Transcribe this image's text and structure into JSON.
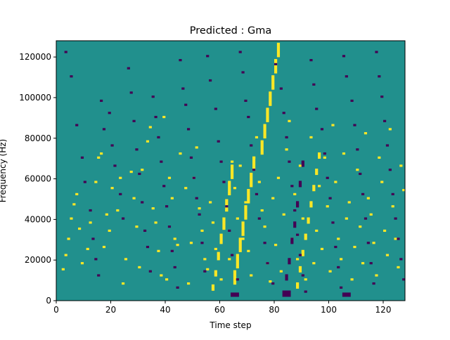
{
  "chart_data": {
    "type": "heatmap",
    "title": "Predicted : Gma",
    "xlabel": "Time step",
    "ylabel": "Frequency (Hz)",
    "xlim": [
      0,
      128
    ],
    "ylim": [
      0,
      128000
    ],
    "x_ticks": [
      0,
      20,
      40,
      60,
      80,
      100,
      120
    ],
    "y_ticks": [
      0,
      20000,
      40000,
      60000,
      80000,
      100000,
      120000
    ],
    "x_tick_labels": [
      "0",
      "20",
      "40",
      "60",
      "80",
      "100",
      "120"
    ],
    "y_tick_labels": [
      "0",
      "20000",
      "40000",
      "60000",
      "80000",
      "100000",
      "120000"
    ],
    "n_time_steps": 128,
    "n_freq_bins": 128,
    "freq_bin_hz": 1000,
    "colormap": {
      "background": "#21908d",
      "high": "#fde725",
      "low": "#440154"
    },
    "high_cells": [
      [
        2,
        15
      ],
      [
        3,
        22
      ],
      [
        4,
        30
      ],
      [
        5,
        40
      ],
      [
        6,
        47
      ],
      [
        7,
        52
      ],
      [
        8,
        35
      ],
      [
        9,
        18
      ],
      [
        11,
        25
      ],
      [
        12,
        38
      ],
      [
        14,
        58
      ],
      [
        15,
        70
      ],
      [
        16,
        72
      ],
      [
        17,
        26
      ],
      [
        18,
        42
      ],
      [
        19,
        34
      ],
      [
        20,
        55
      ],
      [
        22,
        44
      ],
      [
        23,
        60
      ],
      [
        24,
        8
      ],
      [
        25,
        20
      ],
      [
        27,
        63
      ],
      [
        28,
        50
      ],
      [
        29,
        36
      ],
      [
        30,
        16
      ],
      [
        31,
        64
      ],
      [
        33,
        78
      ],
      [
        34,
        85
      ],
      [
        35,
        45
      ],
      [
        36,
        38
      ],
      [
        37,
        24
      ],
      [
        38,
        12
      ],
      [
        39,
        90
      ],
      [
        40,
        10
      ],
      [
        41,
        60
      ],
      [
        42,
        50
      ],
      [
        43,
        30
      ],
      [
        44,
        27
      ],
      [
        45,
        72
      ],
      [
        47,
        55
      ],
      [
        48,
        8
      ],
      [
        49,
        28
      ],
      [
        50,
        60
      ],
      [
        51,
        75
      ],
      [
        52,
        45
      ],
      [
        53,
        34
      ],
      [
        54,
        20
      ],
      [
        55,
        15
      ],
      [
        56,
        48
      ],
      [
        57,
        38
      ],
      [
        58,
        25
      ],
      [
        60,
        10
      ],
      [
        61,
        35
      ],
      [
        62,
        44
      ],
      [
        63,
        20
      ],
      [
        64,
        68
      ],
      [
        65,
        55
      ],
      [
        66,
        40
      ],
      [
        67,
        66
      ],
      [
        68,
        30
      ],
      [
        69,
        48
      ],
      [
        70,
        24
      ],
      [
        71,
        12
      ],
      [
        72,
        70
      ],
      [
        73,
        80
      ],
      [
        74,
        58
      ],
      [
        75,
        44
      ],
      [
        76,
        36
      ],
      [
        77,
        18
      ],
      [
        78,
        9
      ],
      [
        79,
        50
      ],
      [
        80,
        27
      ],
      [
        81,
        60
      ],
      [
        82,
        14
      ],
      [
        83,
        42
      ],
      [
        84,
        74
      ],
      [
        85,
        88
      ],
      [
        86,
        30
      ],
      [
        87,
        52
      ],
      [
        88,
        20
      ],
      [
        89,
        66
      ],
      [
        90,
        40
      ],
      [
        91,
        10
      ],
      [
        93,
        80
      ],
      [
        94,
        18
      ],
      [
        95,
        34
      ],
      [
        96,
        56
      ],
      [
        97,
        25
      ],
      [
        98,
        70
      ],
      [
        99,
        46
      ],
      [
        100,
        14
      ],
      [
        101,
        86
      ],
      [
        102,
        58
      ],
      [
        103,
        30
      ],
      [
        104,
        20
      ],
      [
        105,
        72
      ],
      [
        106,
        40
      ],
      [
        107,
        48
      ],
      [
        108,
        10
      ],
      [
        109,
        26
      ],
      [
        110,
        64
      ],
      [
        111,
        36
      ],
      [
        112,
        18
      ],
      [
        113,
        82
      ],
      [
        114,
        50
      ],
      [
        115,
        42
      ],
      [
        116,
        28
      ],
      [
        117,
        12
      ],
      [
        118,
        70
      ],
      [
        119,
        58
      ],
      [
        120,
        34
      ],
      [
        121,
        22
      ],
      [
        122,
        84
      ],
      [
        123,
        46
      ],
      [
        124,
        30
      ],
      [
        125,
        16
      ],
      [
        126,
        66
      ],
      [
        127,
        54
      ],
      [
        57,
        5
      ],
      [
        57,
        6
      ],
      [
        57,
        7
      ],
      [
        58,
        12
      ],
      [
        58,
        13
      ],
      [
        58,
        14
      ],
      [
        59,
        20
      ],
      [
        59,
        21
      ],
      [
        59,
        22
      ],
      [
        59,
        23
      ],
      [
        60,
        28
      ],
      [
        60,
        29
      ],
      [
        60,
        30
      ],
      [
        60,
        31
      ],
      [
        60,
        32
      ],
      [
        61,
        36
      ],
      [
        61,
        37
      ],
      [
        61,
        38
      ],
      [
        61,
        39
      ],
      [
        61,
        40
      ],
      [
        62,
        44
      ],
      [
        62,
        45
      ],
      [
        62,
        46
      ],
      [
        62,
        47
      ],
      [
        62,
        48
      ],
      [
        62,
        49
      ],
      [
        63,
        52
      ],
      [
        63,
        53
      ],
      [
        63,
        54
      ],
      [
        63,
        55
      ],
      [
        63,
        56
      ],
      [
        63,
        57
      ],
      [
        63,
        58
      ],
      [
        64,
        60
      ],
      [
        64,
        61
      ],
      [
        64,
        62
      ],
      [
        64,
        63
      ],
      [
        64,
        64
      ],
      [
        64,
        65
      ],
      [
        64,
        66
      ],
      [
        65,
        8
      ],
      [
        65,
        9
      ],
      [
        65,
        10
      ],
      [
        65,
        11
      ],
      [
        65,
        12
      ],
      [
        65,
        13
      ],
      [
        65,
        14
      ],
      [
        66,
        16
      ],
      [
        66,
        17
      ],
      [
        66,
        18
      ],
      [
        66,
        19
      ],
      [
        66,
        20
      ],
      [
        66,
        21
      ],
      [
        66,
        22
      ],
      [
        67,
        24
      ],
      [
        67,
        25
      ],
      [
        67,
        26
      ],
      [
        67,
        27
      ],
      [
        67,
        28
      ],
      [
        67,
        29
      ],
      [
        67,
        30
      ],
      [
        68,
        32
      ],
      [
        68,
        33
      ],
      [
        68,
        34
      ],
      [
        68,
        35
      ],
      [
        68,
        36
      ],
      [
        68,
        37
      ],
      [
        68,
        38
      ],
      [
        69,
        40
      ],
      [
        69,
        41
      ],
      [
        69,
        42
      ],
      [
        69,
        43
      ],
      [
        69,
        44
      ],
      [
        69,
        45
      ],
      [
        69,
        46
      ],
      [
        70,
        48
      ],
      [
        70,
        49
      ],
      [
        70,
        50
      ],
      [
        70,
        51
      ],
      [
        70,
        52
      ],
      [
        70,
        53
      ],
      [
        70,
        54
      ],
      [
        71,
        56
      ],
      [
        71,
        57
      ],
      [
        71,
        58
      ],
      [
        71,
        59
      ],
      [
        71,
        60
      ],
      [
        71,
        61
      ],
      [
        71,
        62
      ],
      [
        72,
        64
      ],
      [
        72,
        65
      ],
      [
        72,
        66
      ],
      [
        72,
        67
      ],
      [
        72,
        68
      ],
      [
        72,
        69
      ],
      [
        72,
        70
      ],
      [
        75,
        72
      ],
      [
        75,
        73
      ],
      [
        75,
        74
      ],
      [
        75,
        75
      ],
      [
        75,
        76
      ],
      [
        75,
        77
      ],
      [
        75,
        78
      ],
      [
        76,
        80
      ],
      [
        76,
        81
      ],
      [
        76,
        82
      ],
      [
        76,
        83
      ],
      [
        76,
        84
      ],
      [
        76,
        85
      ],
      [
        76,
        86
      ],
      [
        77,
        88
      ],
      [
        77,
        89
      ],
      [
        77,
        90
      ],
      [
        77,
        91
      ],
      [
        77,
        92
      ],
      [
        77,
        93
      ],
      [
        77,
        94
      ],
      [
        78,
        96
      ],
      [
        78,
        97
      ],
      [
        78,
        98
      ],
      [
        78,
        99
      ],
      [
        78,
        100
      ],
      [
        78,
        101
      ],
      [
        78,
        102
      ],
      [
        79,
        104
      ],
      [
        79,
        105
      ],
      [
        79,
        106
      ],
      [
        79,
        107
      ],
      [
        79,
        108
      ],
      [
        79,
        109
      ],
      [
        79,
        110
      ],
      [
        80,
        112
      ],
      [
        80,
        113
      ],
      [
        80,
        114
      ],
      [
        80,
        115
      ],
      [
        80,
        116
      ],
      [
        80,
        117
      ],
      [
        80,
        118
      ],
      [
        81,
        120
      ],
      [
        81,
        121
      ],
      [
        81,
        122
      ],
      [
        81,
        123
      ],
      [
        81,
        124
      ],
      [
        81,
        125
      ],
      [
        81,
        126
      ],
      [
        88,
        6
      ],
      [
        88,
        7
      ],
      [
        88,
        8
      ],
      [
        89,
        14
      ],
      [
        89,
        15
      ],
      [
        89,
        16
      ],
      [
        90,
        22
      ],
      [
        90,
        23
      ],
      [
        90,
        24
      ],
      [
        91,
        30
      ],
      [
        91,
        31
      ],
      [
        91,
        32
      ],
      [
        92,
        38
      ],
      [
        92,
        39
      ],
      [
        92,
        40
      ],
      [
        93,
        46
      ],
      [
        93,
        47
      ],
      [
        93,
        48
      ],
      [
        94,
        54
      ],
      [
        94,
        55
      ],
      [
        94,
        56
      ],
      [
        95,
        62
      ],
      [
        95,
        63
      ],
      [
        95,
        64
      ],
      [
        96,
        70
      ],
      [
        96,
        71
      ],
      [
        96,
        72
      ]
    ],
    "low_cells": [
      [
        3,
        122
      ],
      [
        5,
        110
      ],
      [
        7,
        86
      ],
      [
        9,
        70
      ],
      [
        10,
        58
      ],
      [
        12,
        44
      ],
      [
        13,
        30
      ],
      [
        14,
        20
      ],
      [
        15,
        12
      ],
      [
        16,
        98
      ],
      [
        17,
        84
      ],
      [
        19,
        92
      ],
      [
        20,
        76
      ],
      [
        21,
        66
      ],
      [
        23,
        52
      ],
      [
        24,
        40
      ],
      [
        26,
        114
      ],
      [
        27,
        102
      ],
      [
        28,
        88
      ],
      [
        29,
        74
      ],
      [
        30,
        62
      ],
      [
        31,
        48
      ],
      [
        32,
        34
      ],
      [
        33,
        26
      ],
      [
        34,
        14
      ],
      [
        35,
        100
      ],
      [
        36,
        90
      ],
      [
        37,
        80
      ],
      [
        38,
        68
      ],
      [
        39,
        56
      ],
      [
        40,
        46
      ],
      [
        41,
        36
      ],
      [
        42,
        24
      ],
      [
        43,
        16
      ],
      [
        44,
        6
      ],
      [
        45,
        118
      ],
      [
        46,
        104
      ],
      [
        47,
        96
      ],
      [
        48,
        84
      ],
      [
        49,
        70
      ],
      [
        50,
        60
      ],
      [
        51,
        50
      ],
      [
        52,
        42
      ],
      [
        53,
        28
      ],
      [
        54,
        14
      ],
      [
        55,
        120
      ],
      [
        56,
        108
      ],
      [
        58,
        94
      ],
      [
        59,
        78
      ],
      [
        60,
        68
      ],
      [
        61,
        58
      ],
      [
        62,
        46
      ],
      [
        63,
        34
      ],
      [
        64,
        22
      ],
      [
        66,
        10
      ],
      [
        67,
        122
      ],
      [
        68,
        112
      ],
      [
        69,
        98
      ],
      [
        70,
        90
      ],
      [
        71,
        76
      ],
      [
        72,
        64
      ],
      [
        73,
        52
      ],
      [
        74,
        40
      ],
      [
        76,
        28
      ],
      [
        77,
        18
      ],
      [
        79,
        8
      ],
      [
        80,
        116
      ],
      [
        82,
        104
      ],
      [
        83,
        92
      ],
      [
        84,
        80
      ],
      [
        85,
        68
      ],
      [
        86,
        56
      ],
      [
        87,
        44
      ],
      [
        88,
        32
      ],
      [
        89,
        22
      ],
      [
        90,
        12
      ],
      [
        91,
        4
      ],
      [
        93,
        118
      ],
      [
        94,
        106
      ],
      [
        95,
        94
      ],
      [
        97,
        84
      ],
      [
        98,
        72
      ],
      [
        99,
        60
      ],
      [
        100,
        50
      ],
      [
        101,
        38
      ],
      [
        102,
        26
      ],
      [
        103,
        16
      ],
      [
        104,
        6
      ],
      [
        105,
        120
      ],
      [
        106,
        110
      ],
      [
        108,
        98
      ],
      [
        109,
        86
      ],
      [
        110,
        74
      ],
      [
        111,
        62
      ],
      [
        112,
        52
      ],
      [
        113,
        40
      ],
      [
        114,
        28
      ],
      [
        115,
        18
      ],
      [
        116,
        8
      ],
      [
        117,
        122
      ],
      [
        118,
        110
      ],
      [
        119,
        100
      ],
      [
        120,
        88
      ],
      [
        121,
        76
      ],
      [
        122,
        64
      ],
      [
        123,
        52
      ],
      [
        124,
        40
      ],
      [
        125,
        30
      ],
      [
        126,
        20
      ],
      [
        127,
        10
      ],
      [
        83,
        2
      ],
      [
        83,
        3
      ],
      [
        83,
        4
      ],
      [
        84,
        2
      ],
      [
        84,
        3
      ],
      [
        84,
        4
      ],
      [
        85,
        2
      ],
      [
        85,
        3
      ],
      [
        85,
        4
      ],
      [
        84,
        10
      ],
      [
        84,
        11
      ],
      [
        84,
        12
      ],
      [
        85,
        18
      ],
      [
        85,
        19
      ],
      [
        85,
        20
      ],
      [
        86,
        28
      ],
      [
        86,
        29
      ],
      [
        86,
        30
      ],
      [
        87,
        36
      ],
      [
        87,
        37
      ],
      [
        87,
        38
      ],
      [
        88,
        46
      ],
      [
        88,
        47
      ],
      [
        88,
        48
      ],
      [
        89,
        56
      ],
      [
        89,
        57
      ],
      [
        89,
        58
      ],
      [
        90,
        66
      ],
      [
        90,
        67
      ],
      [
        90,
        68
      ],
      [
        64,
        2
      ],
      [
        64,
        3
      ],
      [
        65,
        2
      ],
      [
        65,
        3
      ],
      [
        66,
        2
      ],
      [
        66,
        3
      ],
      [
        105,
        2
      ],
      [
        105,
        3
      ],
      [
        106,
        2
      ],
      [
        106,
        3
      ],
      [
        107,
        2
      ],
      [
        107,
        3
      ]
    ]
  }
}
